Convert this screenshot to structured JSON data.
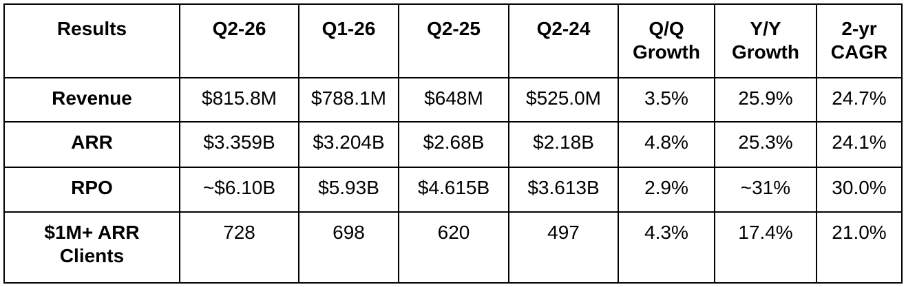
{
  "table": {
    "header": [
      [
        "Results"
      ],
      [
        "Q2-26"
      ],
      [
        "Q1-26"
      ],
      [
        "Q2-25"
      ],
      [
        "Q2-24"
      ],
      [
        "Q/Q",
        "Growth"
      ],
      [
        "Y/Y",
        "Growth"
      ],
      [
        "2-yr",
        "CAGR"
      ]
    ],
    "rows": [
      [
        [
          "Revenue"
        ],
        [
          "$815.8M"
        ],
        [
          "$788.1M"
        ],
        [
          "$648M"
        ],
        [
          "$525.0M"
        ],
        [
          "3.5%"
        ],
        [
          "25.9%"
        ],
        [
          "24.7%"
        ]
      ],
      [
        [
          "ARR"
        ],
        [
          "$3.359B"
        ],
        [
          "$3.204B"
        ],
        [
          "$2.68B"
        ],
        [
          "$2.18B"
        ],
        [
          "4.8%"
        ],
        [
          "25.3%"
        ],
        [
          "24.1%"
        ]
      ],
      [
        [
          "RPO"
        ],
        [
          "~$6.10B"
        ],
        [
          "$5.93B"
        ],
        [
          "$4.615B"
        ],
        [
          "$3.613B"
        ],
        [
          "2.9%"
        ],
        [
          "~31%"
        ],
        [
          "30.0%"
        ]
      ],
      [
        [
          "$1M+ ARR",
          "Clients"
        ],
        [
          "728"
        ],
        [
          "698"
        ],
        [
          "620"
        ],
        [
          "497"
        ],
        [
          "4.3%"
        ],
        [
          "17.4%"
        ],
        [
          "21.0%"
        ]
      ]
    ]
  }
}
